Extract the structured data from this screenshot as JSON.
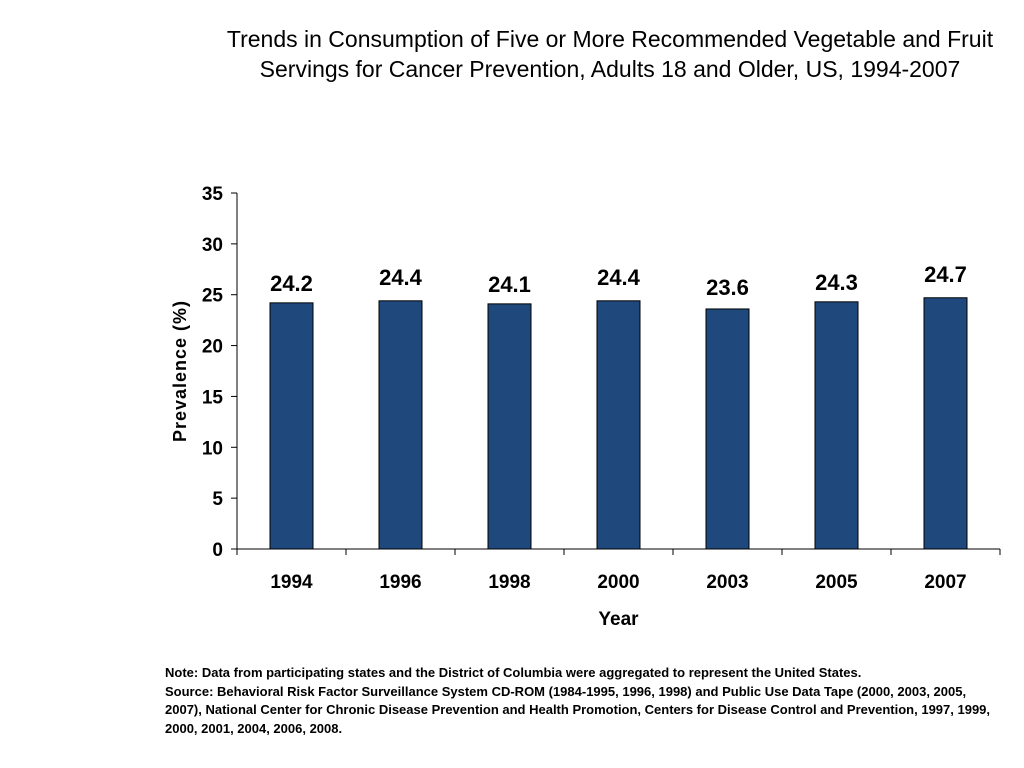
{
  "chart_data": {
    "type": "bar",
    "title": "Trends in Consumption of Five or More Recommended Vegetable and Fruit Servings for Cancer Prevention, Adults 18 and Older, US, 1994-2007",
    "categories": [
      "1994",
      "1996",
      "1998",
      "2000",
      "2003",
      "2005",
      "2007"
    ],
    "values": [
      24.2,
      24.4,
      24.1,
      24.4,
      23.6,
      24.3,
      24.7
    ],
    "data_labels": [
      "24.2",
      "24.4",
      "24.1",
      "24.4",
      "23.6",
      "24.3",
      "24.7"
    ],
    "xlabel": "Year",
    "ylabel": "Prevalence (%)",
    "ylim": [
      0,
      35
    ],
    "yticks": [
      0,
      5,
      10,
      15,
      20,
      25,
      30,
      35
    ],
    "ytick_labels": [
      "0",
      "5",
      "10",
      "15",
      "20",
      "25",
      "30",
      "35"
    ],
    "grid": false,
    "legend": "none",
    "bar_color": "#1f497d"
  },
  "notes": {
    "note": "Note: Data from participating states and the District of Columbia were aggregated to represent the United States.",
    "source": "Source: Behavioral Risk Factor Surveillance System CD-ROM (1984-1995, 1996, 1998) and Public Use Data Tape (2000, 2003, 2005, 2007), National Center for Chronic Disease Prevention and Health Promotion, Centers for Disease Control and Prevention, 1997, 1999, 2000, 2001, 2004, 2006, 2008."
  }
}
